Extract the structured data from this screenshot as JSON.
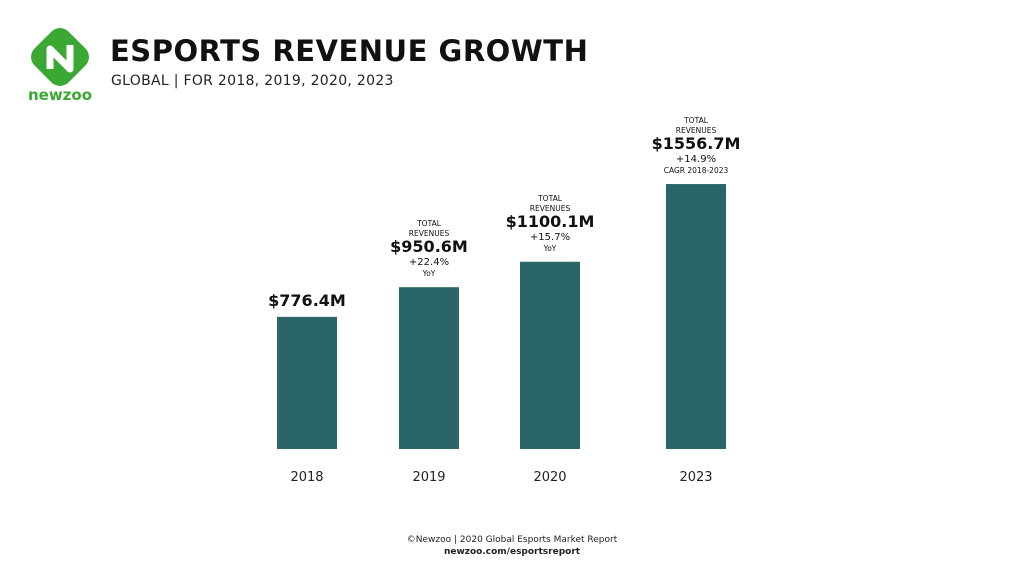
{
  "brand": {
    "name": "newzoo",
    "color": "#3aa832"
  },
  "header": {
    "title": "ESPORTS REVENUE GROWTH",
    "subtitle": "GLOBAL | FOR 2018, 2019, 2020, 2023"
  },
  "chart_data": {
    "type": "bar",
    "categories": [
      "2018",
      "2019",
      "2020",
      "2023"
    ],
    "values": [
      776.4,
      950.6,
      1100.1,
      1556.7
    ],
    "bar_color": "#2a6667",
    "value_labels": [
      "$776.4M",
      "$950.6M",
      "$1100.1M",
      "$1556.7M"
    ],
    "total_labels": [
      "",
      "TOTAL REVENUES",
      "TOTAL REVENUES",
      "TOTAL REVENUES"
    ],
    "growth_labels": [
      "",
      "+22.4%",
      "+15.7%",
      "+14.9%"
    ],
    "growth_notes": [
      "",
      "YoY",
      "YoY",
      "CAGR 2018-2023"
    ],
    "title": "",
    "xlabel": "",
    "ylabel": "",
    "grid": false
  },
  "footer": {
    "source": "©Newzoo | 2020 Global Esports Market Report",
    "url": "newzoo.com/esportsreport"
  }
}
